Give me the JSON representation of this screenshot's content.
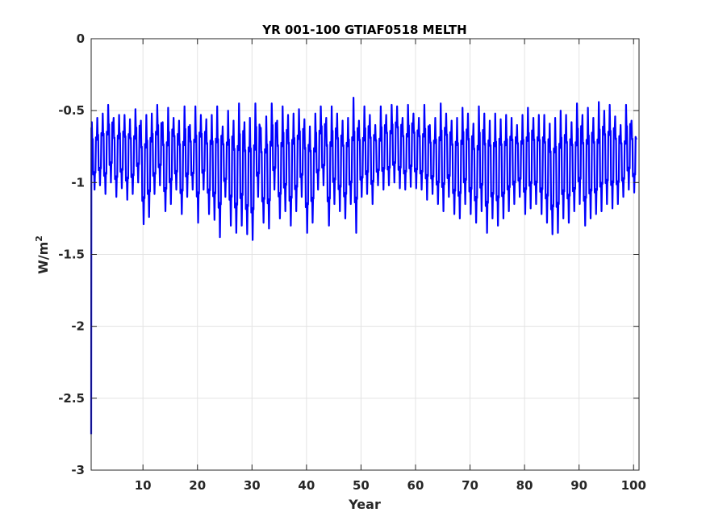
{
  "chart_data": {
    "type": "line",
    "title": "YR 001-100 GTIAF0518 MELTH",
    "xlabel": "Year",
    "ylabel_base": "W/m",
    "ylabel_superscript": "2",
    "xlim": [
      0.5,
      101
    ],
    "ylim": [
      -3,
      0
    ],
    "xticks": [
      10,
      20,
      30,
      40,
      50,
      60,
      70,
      80,
      90,
      100
    ],
    "yticks": [
      0,
      -0.5,
      -1,
      -1.5,
      -2,
      -2.5,
      -3
    ],
    "grid": true,
    "series": [
      {
        "color": "#0000ff",
        "samples_per_year": 12,
        "initial_spinup": [
          -2.75,
          -0.62,
          -0.92
        ],
        "seasonal_max": [
          -0.58,
          -0.55,
          -0.52,
          -0.46,
          -0.55,
          -0.53,
          -0.53,
          -0.56,
          -0.49,
          -0.57,
          -0.53,
          -0.52,
          -0.46,
          -0.58,
          -0.48,
          -0.55,
          -0.57,
          -0.47,
          -0.6,
          -0.47,
          -0.53,
          -0.56,
          -0.53,
          -0.47,
          -0.61,
          -0.5,
          -0.57,
          -0.45,
          -0.58,
          -0.55,
          -0.45,
          -0.62,
          -0.54,
          -0.45,
          -0.57,
          -0.47,
          -0.53,
          -0.52,
          -0.49,
          -0.56,
          -0.61,
          -0.52,
          -0.47,
          -0.55,
          -0.47,
          -0.52,
          -0.57,
          -0.55,
          -0.41,
          -0.57,
          -0.47,
          -0.53,
          -0.6,
          -0.47,
          -0.53,
          -0.46,
          -0.47,
          -0.55,
          -0.46,
          -0.52,
          -0.55,
          -0.46,
          -0.6,
          -0.55,
          -0.45,
          -0.52,
          -0.57,
          -0.55,
          -0.48,
          -0.52,
          -0.59,
          -0.47,
          -0.52,
          -0.57,
          -0.52,
          -0.56,
          -0.53,
          -0.55,
          -0.6,
          -0.53,
          -0.48,
          -0.55,
          -0.53,
          -0.53,
          -0.59,
          -0.55,
          -0.5,
          -0.53,
          -0.58,
          -0.45,
          -0.53,
          -0.48,
          -0.55,
          -0.44,
          -0.5,
          -0.46,
          -0.54,
          -0.6,
          -0.46,
          -0.57
        ],
        "seasonal_min": [
          -1.05,
          -1.02,
          -1.08,
          -1.0,
          -1.1,
          -1.04,
          -1.12,
          -1.08,
          -1.0,
          -1.29,
          -1.24,
          -1.08,
          -1.02,
          -1.2,
          -1.15,
          -1.05,
          -1.22,
          -1.1,
          -1.05,
          -1.28,
          -1.05,
          -1.22,
          -1.26,
          -1.38,
          -1.1,
          -1.3,
          -1.35,
          -1.3,
          -1.36,
          -1.4,
          -1.1,
          -1.28,
          -1.32,
          -1.05,
          -1.25,
          -1.2,
          -1.3,
          -1.2,
          -1.1,
          -1.35,
          -1.28,
          -1.05,
          -1.02,
          -1.3,
          -1.15,
          -1.2,
          -1.25,
          -1.15,
          -1.35,
          -1.1,
          -1.08,
          -1.15,
          -1.02,
          -1.05,
          -1.02,
          -1.0,
          -1.04,
          -1.05,
          -1.03,
          -1.04,
          -1.05,
          -1.12,
          -1.08,
          -1.15,
          -1.2,
          -1.1,
          -1.22,
          -1.25,
          -1.15,
          -1.22,
          -1.28,
          -1.2,
          -1.35,
          -1.25,
          -1.3,
          -1.25,
          -1.2,
          -1.15,
          -1.1,
          -1.22,
          -1.18,
          -1.15,
          -1.22,
          -1.28,
          -1.36,
          -1.35,
          -1.25,
          -1.28,
          -1.2,
          -1.15,
          -1.3,
          -1.25,
          -1.22,
          -1.2,
          -1.15,
          -1.18,
          -1.15,
          -1.1,
          -1.05,
          -1.07
        ]
      }
    ]
  }
}
